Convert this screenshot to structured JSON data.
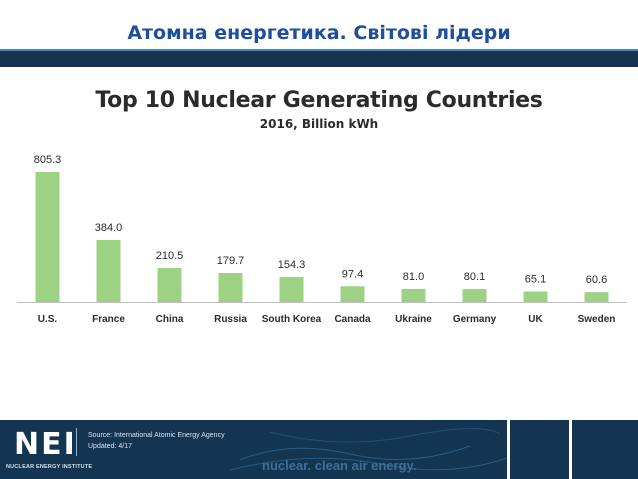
{
  "slide": {
    "heading": "Атомна енергетика. Світові лідери"
  },
  "footer": {
    "logo": "NEI",
    "logo_subtitle": "NUCLEAR ENERGY INSTITUTE",
    "source": "Source: International Atomic Energy Agency",
    "updated": "Updated: 4/17",
    "slogan": "nuclear. clean air energy."
  },
  "colors": {
    "bar": "#9dd184",
    "heading": "#1f4e9c",
    "band": "#16344f",
    "footer": "#133552"
  },
  "chart_data": {
    "type": "bar",
    "title": "Top 10 Nuclear Generating Countries",
    "subtitle": "2016, Billion kWh",
    "categories": [
      "U.S.",
      "France",
      "China",
      "Russia",
      "South Korea",
      "Canada",
      "Ukraine",
      "Germany",
      "UK",
      "Sweden"
    ],
    "values": [
      805.3,
      384.0,
      210.5,
      179.7,
      154.3,
      97.4,
      81.0,
      80.1,
      65.1,
      60.6
    ],
    "value_labels": [
      "805.3",
      "384.0",
      "210.5",
      "179.7",
      "154.3",
      "97.4",
      "81.0",
      "80.1",
      "65.1",
      "60.6"
    ],
    "ylim": [
      0,
      805.3
    ],
    "grid": false,
    "legend": "none"
  }
}
